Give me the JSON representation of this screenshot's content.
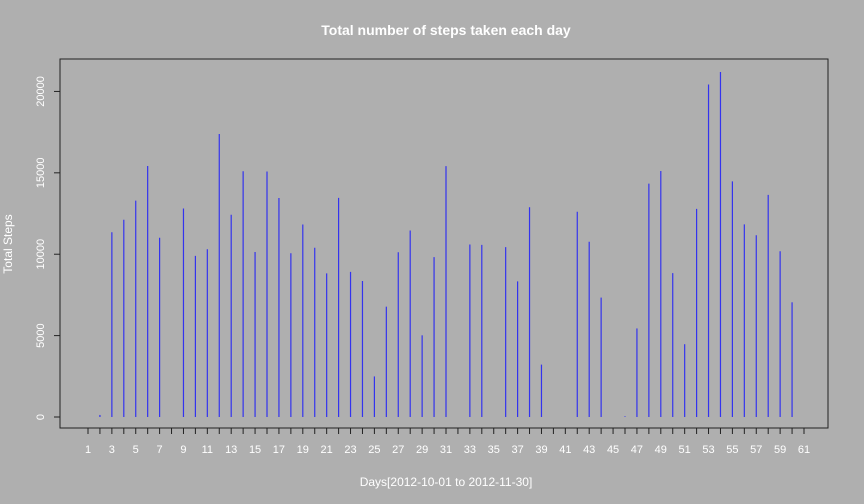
{
  "chart_data": {
    "type": "bar",
    "title": "Total number of steps taken each day",
    "xlabel": "Days[2012-10-01 to 2012-11-30]",
    "ylabel": "Total Steps",
    "x": [
      1,
      2,
      3,
      4,
      5,
      6,
      7,
      8,
      9,
      10,
      11,
      12,
      13,
      14,
      15,
      16,
      17,
      18,
      19,
      20,
      21,
      22,
      23,
      24,
      25,
      26,
      27,
      28,
      29,
      30,
      31,
      32,
      33,
      34,
      35,
      36,
      37,
      38,
      39,
      40,
      41,
      42,
      43,
      44,
      45,
      46,
      47,
      48,
      49,
      50,
      51,
      52,
      53,
      54,
      55,
      56,
      57,
      58,
      59,
      60,
      61
    ],
    "values": [
      0,
      126,
      11352,
      12116,
      13294,
      15420,
      11015,
      0,
      12811,
      9900,
      10304,
      17382,
      12426,
      15098,
      10139,
      15084,
      13452,
      10056,
      11829,
      10395,
      8821,
      13460,
      8918,
      8355,
      2492,
      6778,
      10119,
      11458,
      5018,
      9819,
      15414,
      0,
      10600,
      10571,
      0,
      10439,
      8334,
      12883,
      3219,
      0,
      0,
      12608,
      10765,
      7336,
      0,
      41,
      5441,
      14339,
      15110,
      8841,
      4472,
      12787,
      20427,
      21194,
      14478,
      11834,
      11162,
      13646,
      10183,
      7047,
      0
    ],
    "xlim": [
      1,
      61
    ],
    "ylim": [
      0,
      21194
    ],
    "xticks": [
      1,
      3,
      5,
      7,
      9,
      11,
      13,
      15,
      17,
      19,
      21,
      23,
      25,
      27,
      29,
      31,
      33,
      35,
      37,
      39,
      41,
      43,
      45,
      47,
      49,
      51,
      53,
      55,
      57,
      59,
      61
    ],
    "yticks": [
      0,
      5000,
      10000,
      15000,
      20000
    ],
    "grid": false,
    "bar_style": "histogram-lines",
    "colors": {
      "bars": "#3333ee",
      "background": "#afafaf",
      "axis": "#222222",
      "text": "#ffffff"
    }
  }
}
